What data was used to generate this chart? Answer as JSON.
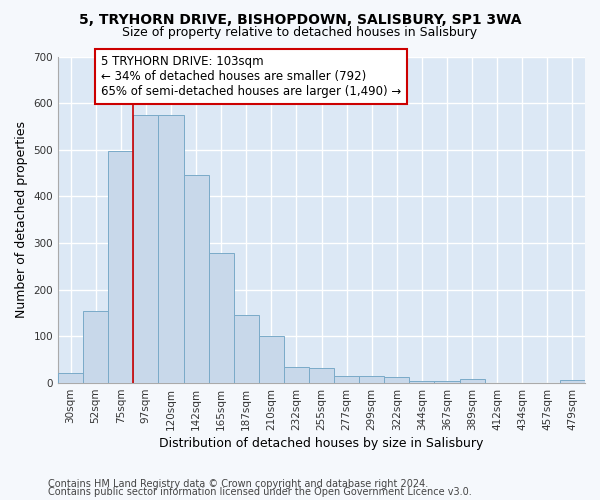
{
  "title_line1": "5, TRYHORN DRIVE, BISHOPDOWN, SALISBURY, SP1 3WA",
  "title_line2": "Size of property relative to detached houses in Salisbury",
  "xlabel": "Distribution of detached houses by size in Salisbury",
  "ylabel": "Number of detached properties",
  "footer_line1": "Contains HM Land Registry data © Crown copyright and database right 2024.",
  "footer_line2": "Contains public sector information licensed under the Open Government Licence v3.0.",
  "bar_labels": [
    "30sqm",
    "52sqm",
    "75sqm",
    "97sqm",
    "120sqm",
    "142sqm",
    "165sqm",
    "187sqm",
    "210sqm",
    "232sqm",
    "255sqm",
    "277sqm",
    "299sqm",
    "322sqm",
    "344sqm",
    "367sqm",
    "389sqm",
    "412sqm",
    "434sqm",
    "457sqm",
    "479sqm"
  ],
  "bar_values": [
    22,
    155,
    497,
    575,
    575,
    445,
    278,
    145,
    100,
    35,
    33,
    15,
    15,
    12,
    5,
    5,
    8,
    0,
    0,
    0,
    7
  ],
  "bar_color": "#c8d8ea",
  "bar_edge_color": "#7aaac8",
  "annotation_text": "5 TRYHORN DRIVE: 103sqm\n← 34% of detached houses are smaller (792)\n65% of semi-detached houses are larger (1,490) →",
  "vline_x": 2.5,
  "ylim_max": 700,
  "yticks": [
    0,
    100,
    200,
    300,
    400,
    500,
    600,
    700
  ],
  "background_color": "#f5f8fc",
  "plot_bg_color": "#dce8f5",
  "grid_color": "#ffffff",
  "annotation_box_color": "#ffffff",
  "annotation_box_edge": "#cc0000",
  "vline_color": "#cc0000",
  "title_fontsize": 10,
  "subtitle_fontsize": 9,
  "tick_fontsize": 7.5,
  "label_fontsize": 9,
  "annotation_fontsize": 8.5,
  "footer_fontsize": 7
}
